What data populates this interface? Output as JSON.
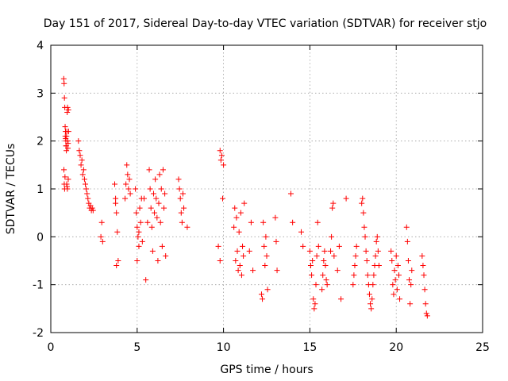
{
  "chart_data": {
    "type": "scatter",
    "title": "Day 151 of 2017, Sidereal Day-to-day VTEC variation (SDTVAR) for receiver stjo",
    "xlabel": "GPS time / hours",
    "ylabel": "SDTVAR / TECUs",
    "xlim": [
      0,
      25
    ],
    "ylim": [
      -2,
      4
    ],
    "xticks": [
      "0",
      "5",
      "10",
      "15",
      "20",
      "25"
    ],
    "yticks": [
      "-2",
      "-1",
      "0",
      "1",
      "2",
      "3",
      "4"
    ],
    "grid": true,
    "marker": "+",
    "color": "#ff0000",
    "series": [
      {
        "name": "stjo",
        "x": [
          0.75,
          0.77,
          0.79,
          0.81,
          0.83,
          0.85,
          0.87,
          0.89,
          0.91,
          0.93,
          0.95,
          0.97,
          0.99,
          1.01,
          0.76,
          0.78,
          0.8,
          0.82,
          0.84,
          0.86,
          0.88,
          0.9,
          0.92,
          0.94,
          0.96,
          0.98,
          1.0,
          1.02,
          1.03,
          1.6,
          1.65,
          1.7,
          1.75,
          1.8,
          1.85,
          1.9,
          1.95,
          2.0,
          2.05,
          2.1,
          2.15,
          2.2,
          2.25,
          2.3,
          2.35,
          2.4,
          2.45,
          2.9,
          2.95,
          3.0,
          3.7,
          3.75,
          3.8,
          3.85,
          3.9,
          3.75,
          3.8,
          4.3,
          4.35,
          4.4,
          4.45,
          4.5,
          4.55,
          4.6,
          4.9,
          4.95,
          5.0,
          5.05,
          5.1,
          5.15,
          5.2,
          5.25,
          5.3,
          5.0,
          5.1,
          5.4,
          5.5,
          5.6,
          5.7,
          5.75,
          5.8,
          5.85,
          5.9,
          5.95,
          6.0,
          6.05,
          6.1,
          6.15,
          6.2,
          6.25,
          6.3,
          6.35,
          6.4,
          6.45,
          6.5,
          6.55,
          6.6,
          6.65,
          7.4,
          7.45,
          7.5,
          7.55,
          7.6,
          7.65,
          7.7,
          7.9,
          9.8,
          9.85,
          9.9,
          9.95,
          10.0,
          9.7,
          9.8,
          10.6,
          10.65,
          10.7,
          10.75,
          10.8,
          10.85,
          10.9,
          10.95,
          11.0,
          11.05,
          11.1,
          11.15,
          11.2,
          11.5,
          11.6,
          11.7,
          12.2,
          12.25,
          12.3,
          12.35,
          12.4,
          12.45,
          12.5,
          12.55,
          13.0,
          13.05,
          13.1,
          13.9,
          14.0,
          14.5,
          14.6,
          15.0,
          15.05,
          15.1,
          15.15,
          15.2,
          15.25,
          15.3,
          15.35,
          15.4,
          15.45,
          15.5,
          15.7,
          15.75,
          15.8,
          15.85,
          15.9,
          15.95,
          16.0,
          16.2,
          16.25,
          16.3,
          16.35,
          16.4,
          16.6,
          16.7,
          16.8,
          17.1,
          17.5,
          17.55,
          17.6,
          17.65,
          17.7,
          18.0,
          18.05,
          18.1,
          18.15,
          18.2,
          18.25,
          18.3,
          18.35,
          18.4,
          18.45,
          18.5,
          18.55,
          18.6,
          18.65,
          18.7,
          18.75,
          18.8,
          18.85,
          18.9,
          18.95,
          19.0,
          19.7,
          19.75,
          19.8,
          19.85,
          19.9,
          19.95,
          20.0,
          20.05,
          20.1,
          20.15,
          20.2,
          20.6,
          20.65,
          20.7,
          20.75,
          20.8,
          20.85,
          20.9,
          21.5,
          21.55,
          21.6,
          21.65,
          21.7,
          21.75,
          21.8
        ],
        "y": [
          3.3,
          3.2,
          2.9,
          2.7,
          2.3,
          2.2,
          2.0,
          1.9,
          2.1,
          2.2,
          2.6,
          2.7,
          1.85,
          1.2,
          1.4,
          1.1,
          1.0,
          1.25,
          2.1,
          2.05,
          1.9,
          1.8,
          1.1,
          1.05,
          1.0,
          2.0,
          1.95,
          2.65,
          2.2,
          2.0,
          1.8,
          1.7,
          1.5,
          1.6,
          1.3,
          1.4,
          1.2,
          1.1,
          1.0,
          0.9,
          0.8,
          0.7,
          0.6,
          0.65,
          0.55,
          0.6,
          0.55,
          0.0,
          0.3,
          -0.1,
          1.1,
          0.8,
          0.5,
          0.1,
          -0.5,
          0.7,
          -0.6,
          0.8,
          1.1,
          1.5,
          1.3,
          1.0,
          1.2,
          0.9,
          1.0,
          0.5,
          0.2,
          0.0,
          -0.2,
          0.6,
          0.3,
          0.8,
          -0.1,
          -0.5,
          0.1,
          0.8,
          -0.9,
          0.3,
          1.4,
          1.0,
          0.6,
          0.2,
          -0.3,
          0.9,
          0.5,
          1.2,
          0.8,
          0.4,
          -0.5,
          0.7,
          1.3,
          0.3,
          1.0,
          -0.2,
          1.4,
          0.6,
          0.9,
          -0.4,
          1.2,
          1.0,
          0.8,
          0.5,
          0.3,
          0.9,
          0.6,
          0.2,
          1.8,
          1.6,
          1.7,
          0.8,
          1.5,
          -0.2,
          -0.5,
          0.2,
          0.6,
          -0.5,
          0.4,
          -0.3,
          -0.7,
          0.1,
          -0.6,
          0.5,
          -0.8,
          -0.2,
          -0.4,
          0.7,
          -0.3,
          0.3,
          -0.7,
          -1.2,
          -1.3,
          0.3,
          -0.2,
          -0.6,
          0.0,
          -0.4,
          -1.1,
          0.4,
          -0.1,
          -0.7,
          0.9,
          0.3,
          0.1,
          -0.2,
          -0.3,
          -0.6,
          -0.8,
          -0.5,
          -1.3,
          -1.5,
          -1.4,
          -1.0,
          -0.4,
          0.3,
          -0.2,
          -1.1,
          -0.8,
          -0.5,
          -0.3,
          -0.6,
          -0.9,
          -1.0,
          -0.3,
          0.0,
          0.6,
          0.7,
          -0.4,
          -0.7,
          -0.2,
          -1.3,
          0.8,
          -1.0,
          -0.8,
          -0.6,
          -0.4,
          -0.2,
          0.7,
          0.8,
          0.5,
          0.2,
          0.0,
          -0.3,
          -0.5,
          -0.8,
          -1.0,
          -1.2,
          -1.4,
          -1.5,
          -1.3,
          -1.0,
          -0.8,
          -0.6,
          -0.4,
          -0.1,
          0.0,
          -0.3,
          -0.6,
          -0.3,
          -0.5,
          -1.0,
          -1.2,
          -0.7,
          -0.9,
          -0.4,
          -1.1,
          -0.6,
          -0.8,
          -1.3,
          0.2,
          -0.1,
          -0.5,
          -0.9,
          -1.4,
          -1.0,
          -0.7,
          -0.4,
          -0.6,
          -0.8,
          -1.1,
          -1.4,
          -1.6,
          -1.65
        ]
      }
    ]
  }
}
